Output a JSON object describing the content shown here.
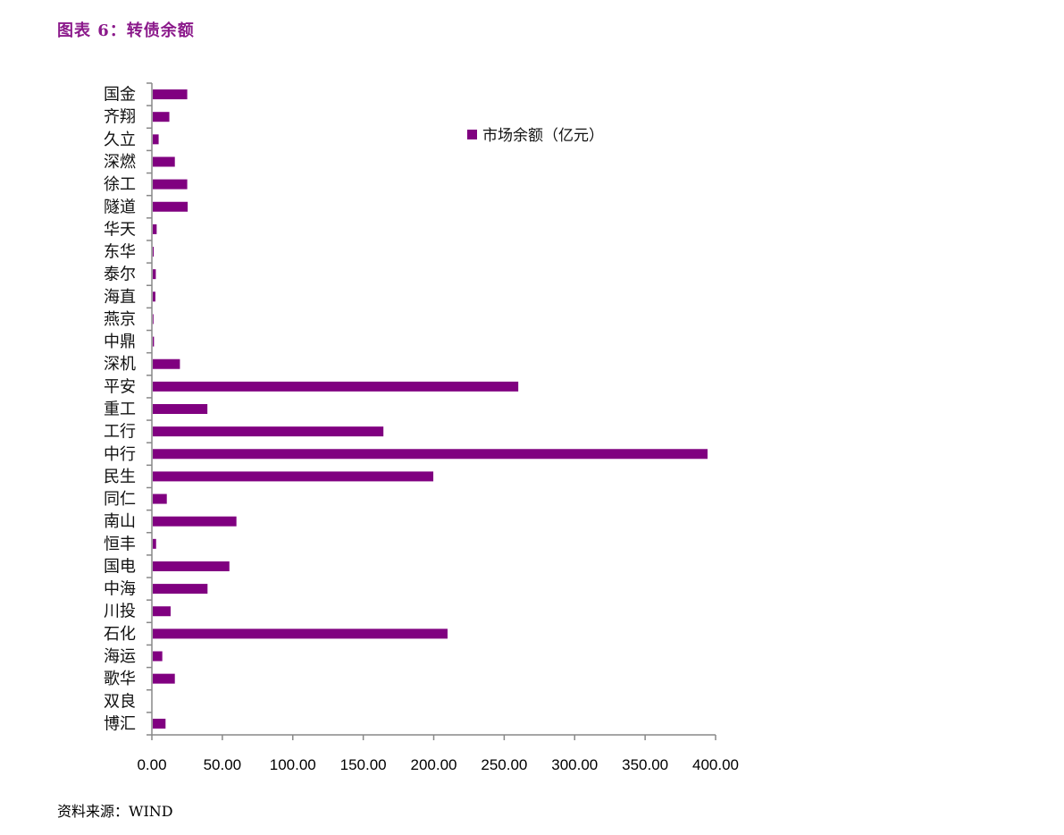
{
  "title": "图表 6：转债余额",
  "source": "资料来源：WIND",
  "chart_data": {
    "type": "bar",
    "orientation": "horizontal",
    "title": "",
    "xlabel": "",
    "ylabel": "",
    "xlim": [
      0,
      400
    ],
    "xticks": [
      "0.00",
      "50.00",
      "100.00",
      "150.00",
      "200.00",
      "250.00",
      "300.00",
      "350.00",
      "400.00"
    ],
    "grid": false,
    "legend_position": "top-right",
    "color": "#800080",
    "categories": [
      "国金",
      "齐翔",
      "久立",
      "深燃",
      "徐工",
      "隧道",
      "华天",
      "东华",
      "泰尔",
      "海直",
      "燕京",
      "中鼎",
      "深机",
      "平安",
      "重工",
      "工行",
      "中行",
      "民生",
      "同仁",
      "南山",
      "恒丰",
      "国电",
      "中海",
      "川投",
      "石化",
      "海运",
      "歌华",
      "双良",
      "博汇"
    ],
    "series": [
      {
        "name": "市场余额（亿元）",
        "values": [
          25.1,
          12.4,
          4.8,
          16.3,
          25.1,
          25.4,
          3.4,
          1.3,
          2.8,
          2.5,
          0.6,
          1.5,
          19.9,
          260,
          39.4,
          164.3,
          394.3,
          199.7,
          10.6,
          60,
          3,
          55,
          39.5,
          13.3,
          209.8,
          7.4,
          16.3,
          0,
          9.7
        ]
      }
    ]
  }
}
